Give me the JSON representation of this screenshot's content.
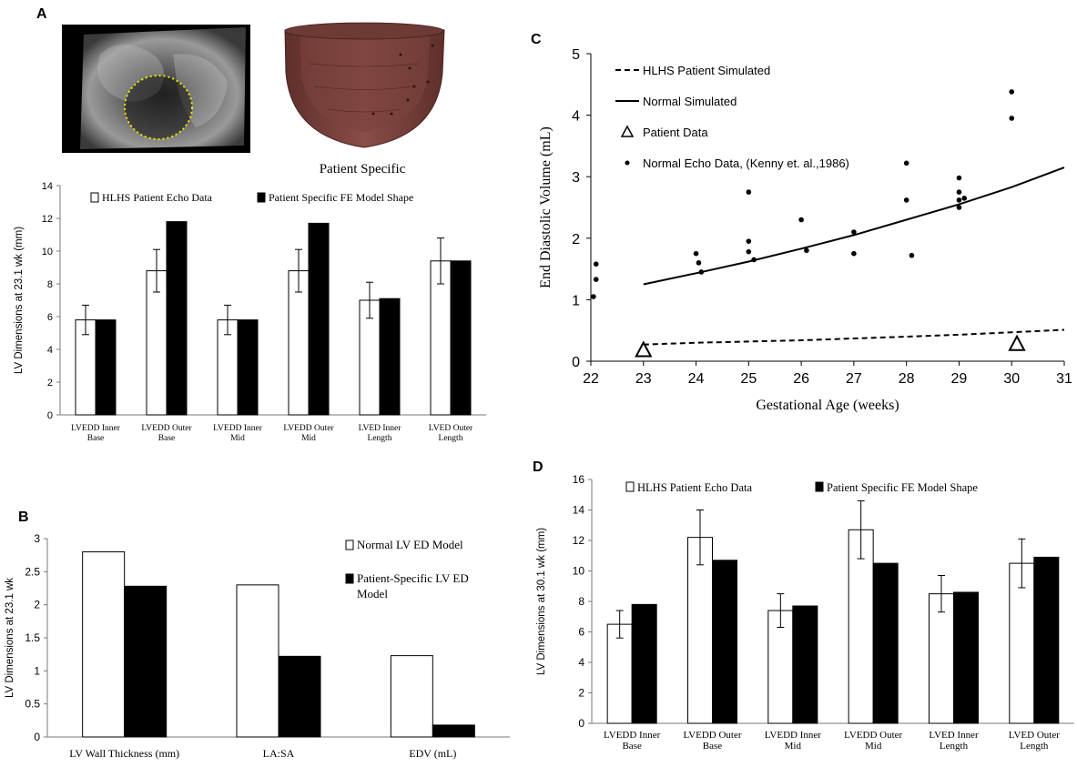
{
  "panels": {
    "A": {
      "letter": "A",
      "model_caption": "Patient Specific",
      "image_ultrasound": "fetal-echo-ultrasound",
      "image_model": "fe-model-heart-shape"
    },
    "B": {
      "letter": "B"
    },
    "C": {
      "letter": "C"
    },
    "D": {
      "letter": "D"
    }
  },
  "colors": {
    "open_bar": "#ffffff",
    "filled_bar": "#000000",
    "axis": "#7a7a7a",
    "ellipse": "#f2e600",
    "model": "#7a3f3a"
  },
  "chart_data": [
    {
      "id": "A",
      "type": "bar",
      "ylabel": "LV Dimensions at 23.1 wk (mm)",
      "ylim": [
        0,
        14
      ],
      "yticks": [
        0,
        2,
        4,
        6,
        8,
        10,
        12,
        14
      ],
      "categories": [
        [
          "LVEDD Inner",
          "Base"
        ],
        [
          "LVEDD Outer",
          "Base"
        ],
        [
          "LVEDD Inner",
          "Mid"
        ],
        [
          "LVEDD Outer",
          "Mid"
        ],
        [
          "LVED Inner",
          "Length"
        ],
        [
          "LVED Outer",
          "Length"
        ]
      ],
      "series": [
        {
          "name": "HLHS Patient Echo Data",
          "fill": "open",
          "values": [
            5.8,
            8.8,
            5.8,
            8.8,
            7.0,
            9.4
          ],
          "err": [
            0.9,
            1.3,
            0.9,
            1.3,
            1.1,
            1.4
          ]
        },
        {
          "name": "Patient Specific FE Model Shape",
          "fill": "filled",
          "values": [
            5.8,
            11.8,
            5.8,
            11.7,
            7.1,
            9.4
          ]
        }
      ]
    },
    {
      "id": "B",
      "type": "bar",
      "ylabel": "LV Dimensions at 23.1 wk",
      "ylim": [
        0,
        3
      ],
      "yticks": [
        "0",
        "0.5",
        "1",
        "1.5",
        "2",
        "2.5",
        "3"
      ],
      "categories": [
        "LV Wall Thickness (mm)",
        "LA:SA",
        "EDV (mL)"
      ],
      "series": [
        {
          "name": "Normal LV ED Model",
          "fill": "open",
          "values": [
            2.8,
            2.3,
            1.23
          ]
        },
        {
          "name": "Patient-Specific LV ED Model",
          "fill": "filled",
          "values": [
            2.28,
            1.22,
            0.18
          ]
        }
      ],
      "legend_lines": [
        [
          "Normal LV ED Model"
        ],
        [
          "Patient-Specific LV ED",
          "Model"
        ]
      ]
    },
    {
      "id": "C",
      "type": "line",
      "xlabel": "Gestational Age (weeks)",
      "ylabel": "End Diastolic Volume (mL)",
      "xlim": [
        22,
        31
      ],
      "ylim": [
        0,
        5
      ],
      "xticks": [
        22,
        23,
        24,
        25,
        26,
        27,
        28,
        29,
        30,
        31
      ],
      "yticks": [
        0,
        1,
        2,
        3,
        4,
        5
      ],
      "series": [
        {
          "name": "HLHS Patient Simulated",
          "style": "dashed",
          "x": [
            23,
            24,
            25,
            26,
            27,
            28,
            29,
            30,
            31
          ],
          "y": [
            0.27,
            0.3,
            0.32,
            0.34,
            0.37,
            0.4,
            0.43,
            0.47,
            0.51
          ]
        },
        {
          "name": "Normal Simulated",
          "style": "solid",
          "x": [
            23,
            24,
            25,
            26,
            27,
            28,
            29,
            30,
            31
          ],
          "y": [
            1.25,
            1.43,
            1.62,
            1.83,
            2.05,
            2.3,
            2.55,
            2.83,
            3.15
          ]
        },
        {
          "name": "Patient Data",
          "style": "triangle",
          "x": [
            23,
            30.1
          ],
          "y": [
            0.17,
            0.27
          ]
        },
        {
          "name": "Normal Echo Data, (Kenny et. al.,1986)",
          "style": "dot",
          "x": [
            22.05,
            22.1,
            22.1,
            24,
            24.05,
            24.1,
            25,
            25,
            25,
            25.1,
            26,
            26.1,
            27,
            27,
            28,
            28,
            28.1,
            29,
            29,
            29,
            29,
            29.1,
            30,
            30
          ],
          "y": [
            1.05,
            1.33,
            1.58,
            1.75,
            1.6,
            1.45,
            2.75,
            1.95,
            1.78,
            1.65,
            2.3,
            1.8,
            2.1,
            1.75,
            3.22,
            2.62,
            1.72,
            2.5,
            2.62,
            2.75,
            2.98,
            2.65,
            4.38,
            3.95
          ]
        }
      ]
    },
    {
      "id": "D",
      "type": "bar",
      "ylabel": "LV Dimensions at 30.1 wk (mm)",
      "ylim": [
        0,
        16
      ],
      "yticks": [
        0,
        2,
        4,
        6,
        8,
        10,
        12,
        14,
        16
      ],
      "categories": [
        [
          "LVEDD Inner",
          "Base"
        ],
        [
          "LVEDD Outer",
          "Base"
        ],
        [
          "LVEDD Inner",
          "Mid"
        ],
        [
          "LVEDD Outer",
          "Mid"
        ],
        [
          "LVED Inner",
          "Length"
        ],
        [
          "LVED Outer",
          "Length"
        ]
      ],
      "series": [
        {
          "name": "HLHS Patient Echo Data",
          "fill": "open",
          "values": [
            6.5,
            12.2,
            7.4,
            12.7,
            8.5,
            10.5
          ],
          "err": [
            0.9,
            1.8,
            1.1,
            1.9,
            1.2,
            1.6
          ]
        },
        {
          "name": "Patient Specific FE Model Shape",
          "fill": "filled",
          "values": [
            7.8,
            10.7,
            7.7,
            10.5,
            8.6,
            10.9
          ]
        }
      ]
    }
  ]
}
